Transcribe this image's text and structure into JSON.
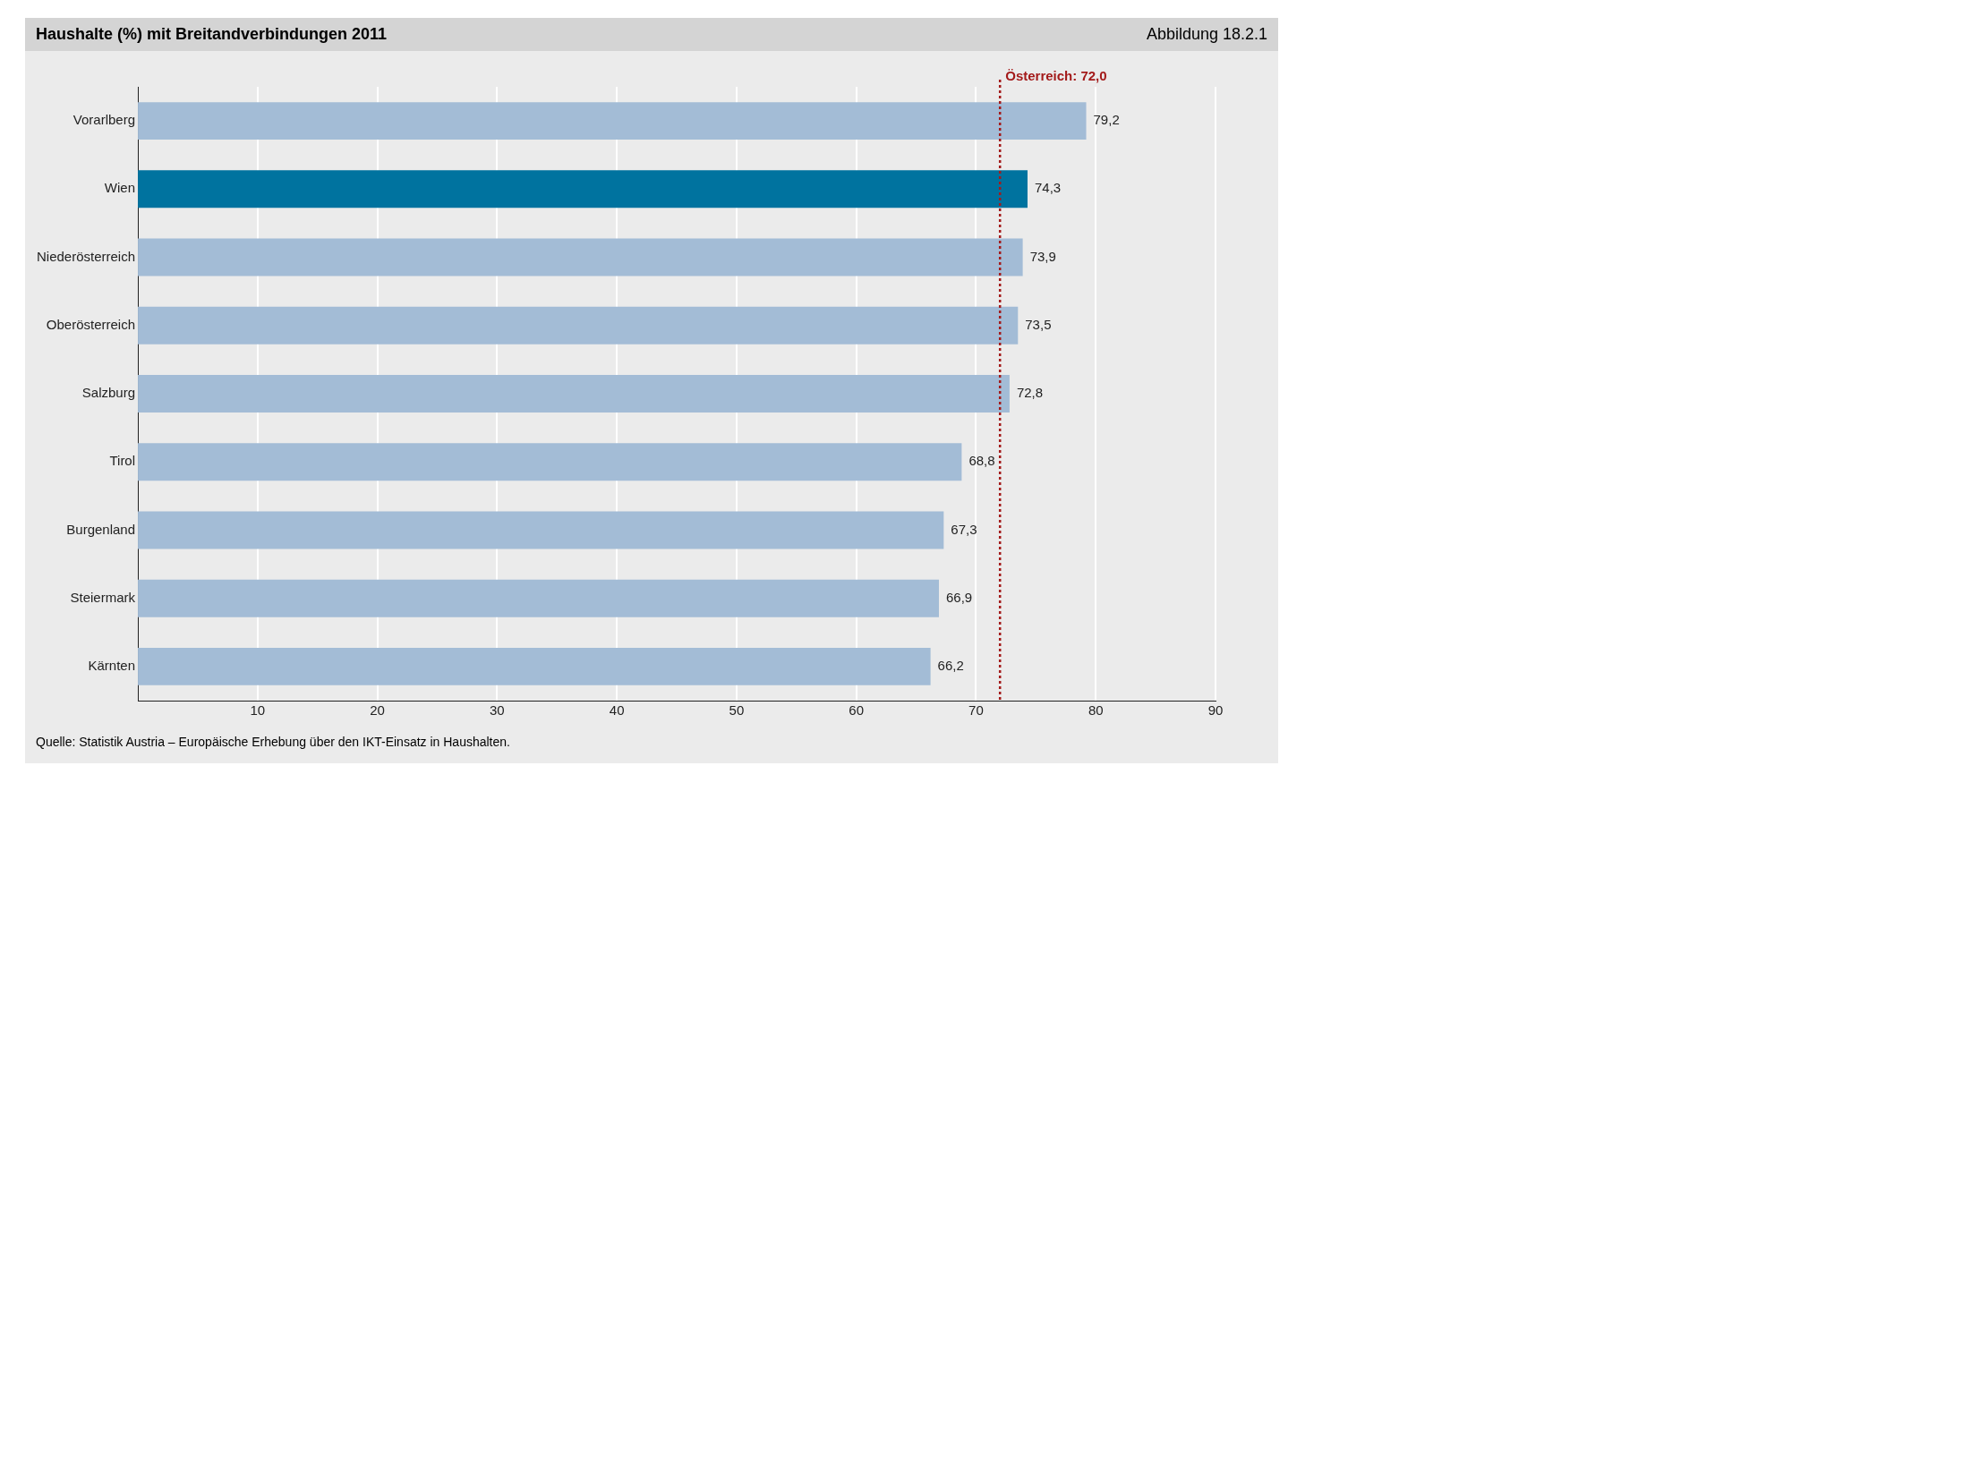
{
  "chart_data": {
    "type": "bar",
    "orientation": "horizontal",
    "title": "Haushalte (%) mit Breitandverbindungen 2011",
    "categories": [
      "Vorarlberg",
      "Wien",
      "Niederösterreich",
      "Oberösterreich",
      "Salzburg",
      "Tirol",
      "Burgenland",
      "Steiermark",
      "Kärnten"
    ],
    "values": [
      79.2,
      74.3,
      73.9,
      73.5,
      72.8,
      68.8,
      67.3,
      66.9,
      66.2
    ],
    "value_labels": [
      "79,2",
      "74,3",
      "73,9",
      "73,5",
      "72,8",
      "68,8",
      "67,3",
      "66,9",
      "66,2"
    ],
    "colors": [
      "#a3bcd6",
      "#00739f",
      "#a3bcd6",
      "#a3bcd6",
      "#a3bcd6",
      "#a3bcd6",
      "#a3bcd6",
      "#a3bcd6",
      "#a3bcd6"
    ],
    "xlim": [
      0,
      90
    ],
    "xticks": [
      10,
      20,
      30,
      40,
      50,
      60,
      70,
      80,
      90
    ],
    "grid": "x",
    "legend": false,
    "ref_lines": [
      {
        "axis": "x",
        "value": 72.0,
        "label": "Österreich: 72,0",
        "color": "#a31a1a",
        "line_style": "dotted"
      }
    ],
    "annotations": [
      "Abbildung 18.2.1",
      "Quelle: Statistik Austria – Europäische Erhebung über den IKT-Einsatz in Haushalten."
    ]
  }
}
